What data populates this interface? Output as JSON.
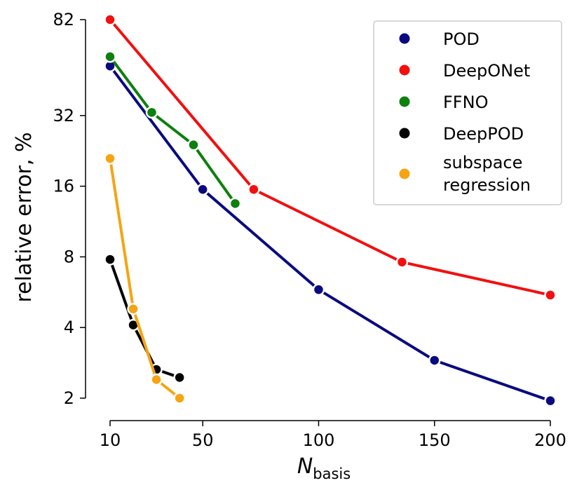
{
  "chart_data": {
    "type": "line",
    "xlabel": "N",
    "xlabel_subscript": "basis",
    "ylabel": "relative error, %",
    "yscale": "log",
    "xlim": [
      0,
      200
    ],
    "ylim": [
      1.8,
      86
    ],
    "x_ticks": [
      {
        "value": 10,
        "label": "10"
      },
      {
        "value": 50,
        "label": "50"
      },
      {
        "value": 100,
        "label": "100"
      },
      {
        "value": 150,
        "label": "150"
      },
      {
        "value": 200,
        "label": "200"
      }
    ],
    "y_ticks": [
      {
        "value": 2,
        "label": "2"
      },
      {
        "value": 4,
        "label": "4"
      },
      {
        "value": 8,
        "label": "8"
      },
      {
        "value": 16,
        "label": "16"
      },
      {
        "value": 32,
        "label": "32"
      },
      {
        "value": 82,
        "label": "82"
      }
    ],
    "grid": false,
    "legend_position": "top-right",
    "series": [
      {
        "name": "POD",
        "color": "#0a0a80",
        "x": [
          10,
          50,
          100,
          150,
          200
        ],
        "y": [
          52,
          15.5,
          5.8,
          2.9,
          1.95
        ]
      },
      {
        "name": "DeepONet",
        "color": "#f20f0f",
        "x": [
          10,
          72,
          136,
          200
        ],
        "y": [
          82,
          15.5,
          7.6,
          5.5
        ]
      },
      {
        "name": "FFNO",
        "color": "#0d800d",
        "x": [
          10,
          28,
          46,
          64
        ],
        "y": [
          57,
          33,
          24,
          13.5
        ]
      },
      {
        "name": "DeepPOD",
        "color": "#000000",
        "x": [
          10,
          20,
          30,
          40
        ],
        "y": [
          7.8,
          4.1,
          2.65,
          2.45
        ]
      },
      {
        "name": "subspace regression",
        "name_lines": [
          "subspace",
          "regression"
        ],
        "color": "#f6a413",
        "x": [
          10,
          20,
          30,
          40
        ],
        "y": [
          21,
          4.8,
          2.4,
          2.0
        ]
      }
    ]
  }
}
